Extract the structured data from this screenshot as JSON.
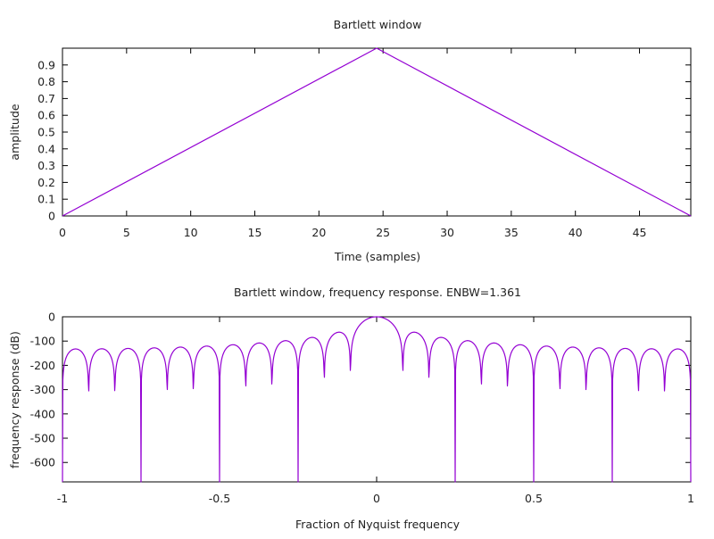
{
  "chart_data": [
    {
      "type": "line",
      "title": "Bartlett window",
      "xlabel": "Time (samples)",
      "ylabel": "amplitude",
      "xlim": [
        0,
        49
      ],
      "ylim": [
        0,
        1
      ],
      "x_ticks": [
        0,
        5,
        10,
        15,
        20,
        25,
        30,
        35,
        40,
        45
      ],
      "y_ticks": [
        0,
        0.1,
        0.2,
        0.3,
        0.4,
        0.5,
        0.6,
        0.7,
        0.8,
        0.9
      ],
      "x_tick_labels": [
        "0",
        "5",
        "10",
        "15",
        "20",
        "25",
        "30",
        "35",
        "40",
        "45"
      ],
      "y_tick_labels": [
        "0",
        "0.1",
        "0.2",
        "0.3",
        "0.4",
        "0.5",
        "0.6",
        "0.7",
        "0.8",
        "0.9"
      ],
      "grid": false,
      "color": "#9400d3",
      "series": [
        {
          "x": [
            0,
            24.5,
            49
          ],
          "y": [
            0,
            1,
            0
          ]
        }
      ]
    },
    {
      "type": "line",
      "title": "Bartlett window, frequency response. ENBW=1.361",
      "xlabel": "Fraction of Nyquist frequency",
      "ylabel": "frequency response (dB)",
      "xlim": [
        -1,
        1
      ],
      "ylim": [
        -680,
        0
      ],
      "x_ticks": [
        -1,
        -0.5,
        0,
        0.5,
        1
      ],
      "y_ticks": [
        0,
        -100,
        -200,
        -300,
        -400,
        -500,
        -600
      ],
      "x_tick_labels": [
        "-1",
        "-0.5",
        "0",
        "0.5",
        "1"
      ],
      "y_tick_labels": [
        "0",
        "-100",
        "-200",
        "-300",
        "-400",
        "-500",
        "-600"
      ],
      "grid": false,
      "color": "#9400d3",
      "window_length": 49
    }
  ]
}
